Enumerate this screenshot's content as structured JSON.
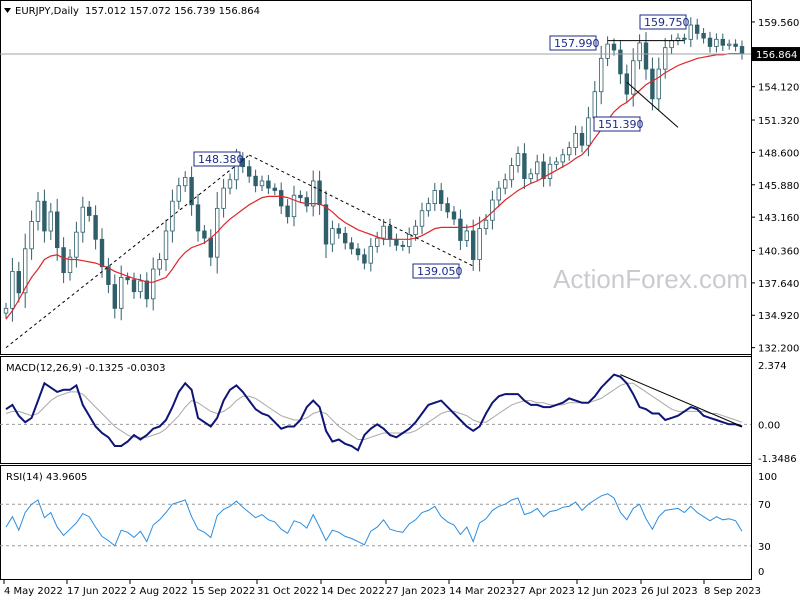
{
  "header": {
    "menu_icon": "triangle-down-icon",
    "symbol": "EURJPY,Daily",
    "ohlc": "157.012 157.072 156.739 156.864"
  },
  "watermark": "ActionForex.com",
  "colors": {
    "candle": "#2f5f6a",
    "sma": "#e0252b",
    "macd_line": "#0f1577",
    "macd_signal": "#a9a9a9",
    "rsi": "#2a8ee0",
    "annotation": "#1c2a8a",
    "trendline": "#000000",
    "price_tag_bg": "#000000"
  },
  "chart_data": [
    {
      "type": "line",
      "panel": "price",
      "series": [
        {
          "name": "EURJPY,Daily",
          "kind": "candlestick",
          "values": [
            135.5,
            138.6,
            136.8,
            140.5,
            142.8,
            144.5,
            142.0,
            143.6,
            140.6,
            138.5,
            139.8,
            141.9,
            144.0,
            143.3,
            141.3,
            139.0,
            137.5,
            135.5,
            138.1,
            137.9,
            136.9,
            137.8,
            136.3,
            138.8,
            139.6,
            142.0,
            144.5,
            145.8,
            146.5,
            144.2,
            142.0,
            141.4,
            139.8,
            143.9,
            145.6,
            146.3,
            148.1,
            147.4,
            146.6,
            145.8,
            146.2,
            145.6,
            145.4,
            144.1,
            143.2,
            145.0,
            144.8,
            144.1,
            146.2,
            144.2,
            140.9,
            142.2,
            141.8,
            141.0,
            140.5,
            140.0,
            139.3,
            140.7,
            141.4,
            142.4,
            141.3,
            140.8,
            140.7,
            141.7,
            142.4,
            143.7,
            144.3,
            145.4,
            144.3,
            143.6,
            143.0,
            141.2,
            142.0,
            139.6,
            142.2,
            142.9,
            144.6,
            145.6,
            146.3,
            147.5,
            148.5,
            146.4,
            146.8,
            147.8,
            146.4,
            147.6,
            147.8,
            148.4,
            149.0,
            150.2,
            149.2,
            151.5,
            153.7,
            156.5,
            157.7,
            157.2,
            155.2,
            153.5,
            156.3,
            157.8,
            155.6,
            153.1,
            155.6,
            157.4,
            158.0,
            158.2,
            158.1,
            159.3,
            158.6,
            158.2,
            157.5,
            158.1,
            157.6,
            157.7,
            157.5,
            156.9
          ]
        },
        {
          "name": "SMA",
          "kind": "line",
          "values": [
            134.6,
            135.3,
            136.2,
            137.2,
            138.1,
            138.8,
            139.6,
            139.9,
            140.0,
            139.7,
            139.6,
            139.6,
            139.5,
            139.4,
            139.3,
            139.1,
            138.9,
            138.6,
            138.4,
            138.2,
            138.0,
            137.9,
            137.7,
            137.7,
            137.9,
            138.1,
            138.8,
            139.6,
            140.2,
            140.6,
            140.8,
            141.0,
            141.4,
            141.9,
            142.5,
            143.0,
            143.4,
            143.8,
            144.2,
            144.5,
            144.8,
            144.9,
            144.9,
            144.9,
            144.8,
            144.6,
            144.4,
            144.3,
            144.3,
            144.3,
            144.0,
            143.6,
            143.1,
            142.7,
            142.4,
            142.1,
            141.9,
            141.7,
            141.5,
            141.3,
            141.3,
            141.3,
            141.3,
            141.3,
            141.4,
            141.6,
            141.9,
            142.2,
            142.3,
            142.3,
            142.3,
            142.3,
            142.3,
            142.4,
            142.7,
            143.1,
            143.6,
            144.1,
            144.6,
            145.0,
            145.4,
            145.7,
            146.0,
            146.2,
            146.5,
            146.8,
            147.1,
            147.4,
            147.7,
            148.1,
            148.4,
            149.0,
            149.8,
            150.5,
            151.3,
            152.0,
            152.5,
            152.8,
            153.3,
            153.8,
            154.3,
            154.6,
            154.9,
            155.3,
            155.6,
            155.9,
            156.1,
            156.3,
            156.5,
            156.6,
            156.7,
            156.8,
            156.8,
            156.9,
            156.9,
            156.9
          ]
        }
      ],
      "price_ticks": [
        "159.560",
        "156.864",
        "154.120",
        "151.320",
        "148.600",
        "145.880",
        "143.160",
        "140.360",
        "137.640",
        "134.920",
        "132.200"
      ],
      "y_range": [
        132.0,
        160.9
      ],
      "last_price": "156.864",
      "annotations": [
        "157.990",
        "159.750",
        "148.380",
        "151.390",
        "139.050"
      ],
      "trendlines": [
        {
          "from": [
            0,
            132.2
          ],
          "to": [
            38,
            148.38
          ],
          "style": "dashed"
        },
        {
          "from": [
            38,
            148.38
          ],
          "to": [
            73,
            139.05
          ],
          "style": "dashed"
        },
        {
          "from": [
            94,
            157.99
          ],
          "to": [
            106,
            157.99
          ],
          "style": "solid"
        },
        {
          "from": [
            97,
            154.5
          ],
          "to": [
            105,
            150.7
          ],
          "style": "solid"
        }
      ]
    },
    {
      "type": "line",
      "panel": "macd",
      "title": "MACD(12,26,9) -0.1325 -0.0303",
      "y_ticks": [
        "2.374",
        "0.00",
        "-1.3486"
      ],
      "zero_label": "0.00",
      "y_range": [
        -1.65,
        2.7
      ],
      "series": [
        {
          "name": "MACD",
          "values": [
            0.7,
            0.9,
            0.4,
            0.1,
            0.3,
            1.1,
            1.9,
            1.7,
            1.5,
            1.6,
            1.6,
            1.8,
            0.9,
            0.4,
            -0.1,
            -0.4,
            -0.6,
            -1.0,
            -1.0,
            -0.8,
            -0.5,
            -0.7,
            -0.5,
            -0.2,
            -0.1,
            0.2,
            0.8,
            1.5,
            1.9,
            1.6,
            0.3,
            0.1,
            -0.1,
            0.3,
            1.1,
            1.6,
            1.8,
            1.5,
            1.1,
            0.7,
            0.5,
            0.4,
            0.1,
            -0.2,
            -0.1,
            -0.1,
            0.2,
            0.8,
            1.1,
            0.8,
            -0.3,
            -0.8,
            -0.7,
            -0.9,
            -1.0,
            -1.2,
            -0.5,
            -0.2,
            0.0,
            -0.2,
            -0.5,
            -0.6,
            -0.4,
            -0.2,
            0.1,
            0.5,
            0.9,
            1.0,
            1.1,
            0.8,
            0.5,
            0.2,
            -0.1,
            -0.3,
            -0.1,
            0.5,
            1.0,
            1.3,
            1.4,
            1.4,
            1.4,
            1.1,
            0.9,
            0.9,
            0.8,
            0.8,
            0.9,
            1.0,
            1.2,
            1.1,
            1.0,
            1.0,
            1.3,
            1.7,
            2.0,
            2.3,
            2.2,
            1.9,
            1.4,
            0.8,
            0.7,
            0.5,
            0.5,
            0.2,
            0.3,
            0.4,
            0.6,
            0.8,
            0.7,
            0.4,
            0.3,
            0.2,
            0.1,
            0.0,
            0.0,
            -0.1
          ]
        },
        {
          "name": "Signal",
          "values": [
            0.5,
            0.6,
            0.6,
            0.5,
            0.4,
            0.5,
            0.8,
            1.1,
            1.3,
            1.4,
            1.5,
            1.5,
            1.4,
            1.1,
            0.8,
            0.5,
            0.2,
            -0.1,
            -0.3,
            -0.5,
            -0.6,
            -0.6,
            -0.6,
            -0.5,
            -0.4,
            -0.2,
            0.1,
            0.4,
            0.8,
            1.1,
            1.0,
            0.8,
            0.6,
            0.5,
            0.6,
            0.8,
            1.1,
            1.3,
            1.3,
            1.2,
            1.0,
            0.8,
            0.6,
            0.4,
            0.3,
            0.2,
            0.2,
            0.3,
            0.5,
            0.6,
            0.5,
            0.2,
            -0.1,
            -0.3,
            -0.5,
            -0.7,
            -0.7,
            -0.6,
            -0.5,
            -0.4,
            -0.4,
            -0.4,
            -0.4,
            -0.4,
            -0.3,
            -0.1,
            0.1,
            0.3,
            0.5,
            0.6,
            0.6,
            0.5,
            0.4,
            0.2,
            0.1,
            0.1,
            0.3,
            0.5,
            0.7,
            0.9,
            1.0,
            1.1,
            1.1,
            1.0,
            1.0,
            0.9,
            0.9,
            0.9,
            1.0,
            1.0,
            1.0,
            1.0,
            1.1,
            1.2,
            1.4,
            1.6,
            1.8,
            1.9,
            1.9,
            1.7,
            1.5,
            1.3,
            1.1,
            0.9,
            0.7,
            0.6,
            0.6,
            0.6,
            0.6,
            0.6,
            0.5,
            0.5,
            0.4,
            0.3,
            0.2,
            0.1
          ]
        }
      ],
      "trendline": {
        "from": [
          96,
          2.3
        ],
        "to": [
          115,
          -0.1
        ]
      }
    },
    {
      "type": "line",
      "panel": "rsi",
      "title": "RSI(14) 43.9605",
      "y_ticks": [
        "100",
        "70",
        "30",
        "0"
      ],
      "levels": [
        70,
        30
      ],
      "y_range": [
        0,
        100
      ],
      "series": [
        {
          "name": "RSI(14)",
          "values": [
            48,
            58,
            45,
            62,
            70,
            74,
            57,
            62,
            48,
            40,
            46,
            52,
            61,
            58,
            48,
            39,
            35,
            30,
            45,
            43,
            38,
            44,
            34,
            50,
            55,
            62,
            70,
            72,
            74,
            58,
            46,
            43,
            38,
            59,
            65,
            68,
            73,
            67,
            62,
            57,
            60,
            55,
            53,
            46,
            42,
            54,
            52,
            47,
            60,
            48,
            35,
            45,
            43,
            39,
            37,
            34,
            31,
            44,
            48,
            55,
            46,
            44,
            43,
            51,
            55,
            62,
            64,
            68,
            58,
            53,
            50,
            41,
            48,
            34,
            52,
            56,
            64,
            68,
            70,
            74,
            76,
            60,
            62,
            66,
            58,
            63,
            64,
            67,
            68,
            72,
            64,
            70,
            74,
            78,
            80,
            76,
            62,
            55,
            66,
            70,
            56,
            46,
            58,
            64,
            65,
            66,
            62,
            68,
            62,
            58,
            54,
            58,
            55,
            56,
            54,
            44
          ]
        }
      ]
    }
  ],
  "x_axis": {
    "dates": [
      "4 May 2022",
      "17 Jun 2022",
      "2 Aug 2022",
      "15 Sep 2022",
      "31 Oct 2022",
      "14 Dec 2022",
      "27 Jan 2023",
      "14 Mar 2023",
      "27 Apr 2023",
      "12 Jun 2023",
      "26 Jul 2023",
      "8 Sep 2023"
    ]
  }
}
